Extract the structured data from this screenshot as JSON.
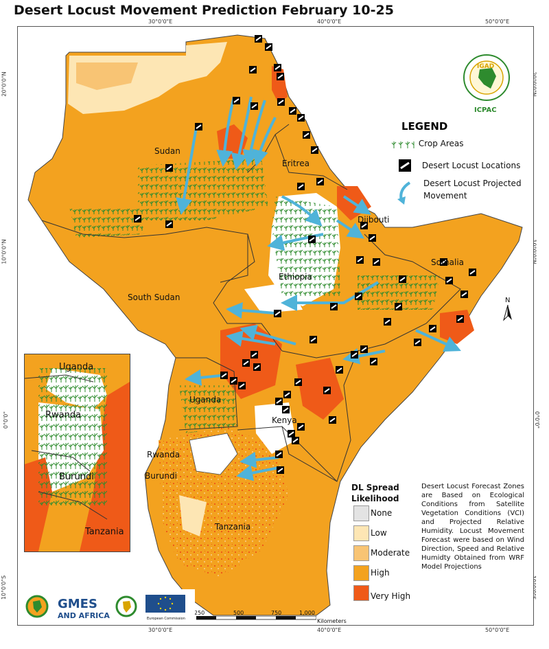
{
  "title": "Desert Locust Movement Prediction February 10-25",
  "graticule": {
    "top": [
      "30°0'0\"E",
      "40°0'0\"E",
      "50°0'0\"E"
    ],
    "bottom": [
      "30°0'0\"E",
      "40°0'0\"E",
      "50°0'0\"E"
    ],
    "left": [
      "20°0'0\"N",
      "10°0'0\"N",
      "0°0'0\"",
      "10°0'0\"S"
    ],
    "right": [
      "20°0'0\"N",
      "10°0'0\"N",
      "0°0'0\"",
      "10°0'0\"S"
    ]
  },
  "countries": {
    "sudan": "Sudan",
    "eritrea": "Eritrea",
    "djibouti": "Djibouti",
    "ethiopia": "Ethiopia",
    "somalia": "Somalia",
    "south_sudan": "South Sudan",
    "uganda": "Uganda",
    "kenya": "Kenya",
    "tanzania": "Tanzania",
    "rwanda": "Rwanda",
    "burundi": "Burundi"
  },
  "inset": {
    "uganda": "Uganda",
    "rwanda": "Rwanda",
    "burundi": "Burundi",
    "tanzania": "Tanzania"
  },
  "logo_text": "ICPAC",
  "legend": {
    "title": "LEGEND",
    "crop_areas": "Crop Areas",
    "locust_locations": "Desert Locust Locations",
    "projected_movement": "Desert Locust Projected Movement"
  },
  "spread": {
    "title": "DL Spread Likelihood",
    "classes": [
      {
        "label": "None",
        "color": "#e3e3e3"
      },
      {
        "label": "Low",
        "color": "#fde6b4"
      },
      {
        "label": "Moderate",
        "color": "#f8c474"
      },
      {
        "label": "High",
        "color": "#f3a21f"
      },
      {
        "label": "Very High",
        "color": "#ef5a18"
      }
    ]
  },
  "notes": "Desert Locust Forecast Zones are Based on Ecological Conditions from Satellite Vegetation Conditions (VCI) and Projected Relative Humidity. Locust Movement Forecast were based on Wind Direction, Speed and Relative Humidty Obtained from WRF Model Projections",
  "scale": {
    "labels": [
      "250",
      "500",
      "750",
      "1,000"
    ],
    "unit": "Kilometers"
  },
  "footer_logos": {
    "gmes_line1": "GMES",
    "gmes_line2": "AND AFRICA",
    "eu_caption": "European Commission"
  },
  "colors": {
    "high": "#f3a21f",
    "very_high": "#ef5a18",
    "moderate": "#f8c474",
    "low": "#fde6b4",
    "none": "#e3e3e3",
    "arrow": "#4fb3d9",
    "crop": "#2e8b2e"
  }
}
